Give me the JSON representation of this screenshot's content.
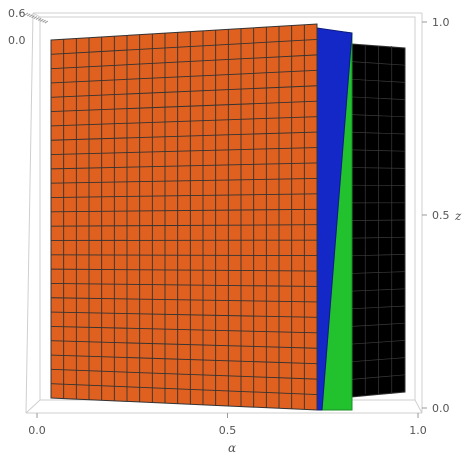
{
  "chart_data": {
    "type": "surface3d",
    "xlabel": "α",
    "zlabel": "z",
    "x_ticks": [
      {
        "value": 0.0,
        "label": "0.0"
      },
      {
        "value": 0.5,
        "label": "0.5"
      },
      {
        "value": 1.0,
        "label": "1.0"
      }
    ],
    "z_ticks": [
      {
        "value": 0.0,
        "label": "0.0"
      },
      {
        "value": 0.5,
        "label": "0.5"
      },
      {
        "value": 1.0,
        "label": "1.0"
      }
    ],
    "y_ticks": [
      {
        "value": 0.6,
        "label": "0.6"
      },
      {
        "value": 0.0,
        "label": "0.0"
      }
    ],
    "xlim": [
      0,
      1
    ],
    "zlim": [
      0,
      1
    ],
    "surfaces": [
      {
        "color": "#E0601F",
        "alpha_range": [
          0.0,
          0.76
        ],
        "z_range": [
          0,
          1
        ],
        "mesh": {
          "cols": 21,
          "rows": 25
        }
      },
      {
        "color": "#1428C8",
        "alpha_range": [
          0.76,
          0.82
        ],
        "z_range": [
          0,
          1
        ]
      },
      {
        "color": "#22C22E",
        "alpha_range": [
          0.76,
          0.82
        ],
        "z_range": [
          0,
          1
        ]
      },
      {
        "color": "#000000",
        "alpha_range": [
          0.82,
          1.0
        ],
        "z_range": [
          0,
          1
        ]
      }
    ],
    "grid": false,
    "box": true
  }
}
